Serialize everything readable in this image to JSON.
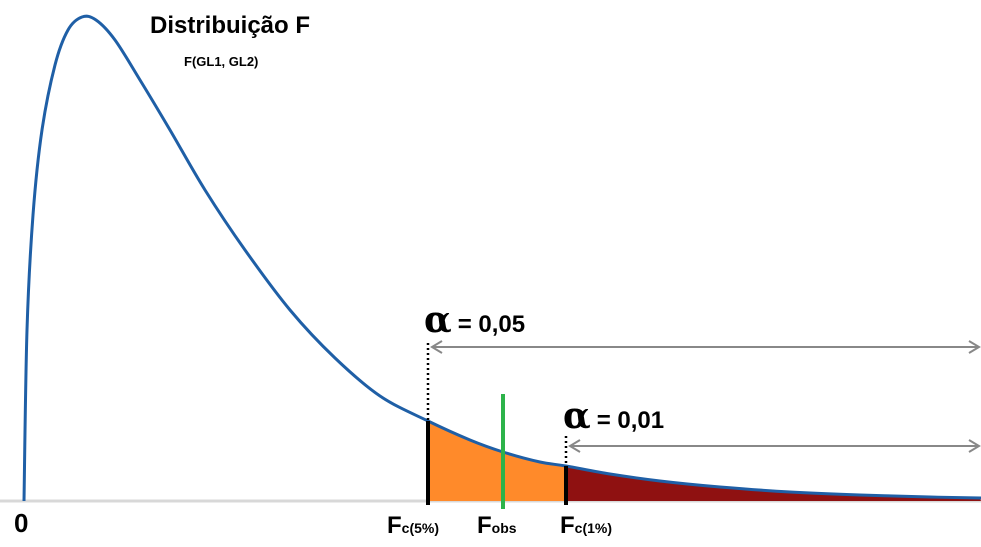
{
  "figure": {
    "title": "Distribuição F",
    "subtitle": "F(GL1,  GL2)",
    "origin_label": "0",
    "curve_color": "#1f5fa6",
    "region_alpha_05_color": "#ff8a2a",
    "region_alpha_01_color": "#8f1111",
    "fobs_line_color": "#2db34a",
    "arrow_color": "#888888"
  },
  "alpha_05": {
    "symbol": "α",
    "value": "= 0,05"
  },
  "alpha_01": {
    "symbol": "α",
    "value": "= 0,01"
  },
  "markers": {
    "fc5": {
      "F": "F",
      "sub": "c(5%)"
    },
    "fobs": {
      "F": "F",
      "sub": "obs"
    },
    "fc1": {
      "F": "F",
      "sub": "c(1%)"
    }
  }
}
